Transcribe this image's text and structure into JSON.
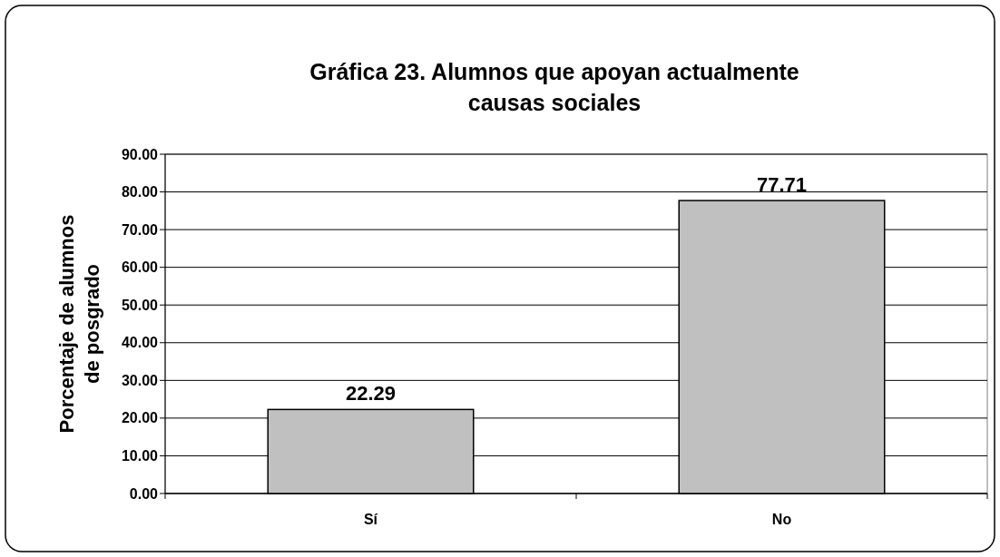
{
  "chart_data": {
    "type": "bar",
    "title": "Gráfica 23. Alumnos que apoyan actualmente\ncausas sociales",
    "ylabel": "Porcentaje de alumnos\nde posgrado",
    "categories": [
      "Sí",
      "No"
    ],
    "values": [
      22.29,
      77.71
    ],
    "color": "#c0c0c0",
    "data_labels": true,
    "grid": "y",
    "ylim": [
      0,
      90
    ],
    "yticks": [
      {
        "value": 0,
        "label": "0.00"
      },
      {
        "value": 10,
        "label": "10.00"
      },
      {
        "value": 20,
        "label": "20.00"
      },
      {
        "value": 30,
        "label": "30.00"
      },
      {
        "value": 40,
        "label": "40.00"
      },
      {
        "value": 50,
        "label": "50.00"
      },
      {
        "value": 60,
        "label": "60.00"
      },
      {
        "value": 70,
        "label": "70.00"
      },
      {
        "value": 80,
        "label": "80.00"
      },
      {
        "value": 90,
        "label": "90.00"
      }
    ]
  }
}
